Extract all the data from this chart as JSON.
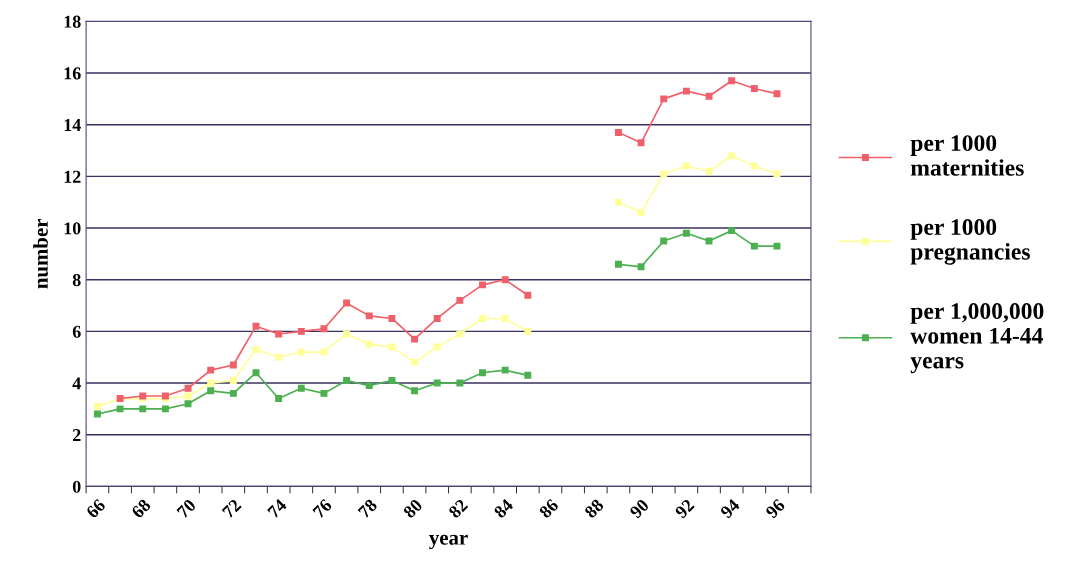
{
  "chart_data": {
    "type": "line",
    "xlabel": "year",
    "ylabel": "number",
    "categories": [
      "66",
      null,
      "68",
      null,
      "70",
      null,
      "72",
      null,
      "74",
      null,
      "76",
      null,
      "78",
      null,
      "80",
      null,
      "82",
      null,
      "84",
      null,
      "86",
      null,
      "88",
      null,
      "90",
      null,
      "92",
      null,
      "94",
      null,
      "96",
      null
    ],
    "series": [
      {
        "name": "per 1000\nmaternities",
        "color": "#f0606a",
        "values": [
          null,
          3.4,
          3.5,
          3.5,
          3.8,
          4.5,
          4.7,
          6.2,
          5.9,
          6.0,
          6.1,
          7.1,
          6.6,
          6.5,
          5.7,
          6.5,
          7.2,
          7.8,
          8.0,
          7.4,
          null,
          null,
          null,
          13.7,
          13.3,
          15.0,
          15.3,
          15.1,
          15.7,
          15.4,
          15.2,
          null
        ]
      },
      {
        "name": "per 1000\npregnancies",
        "color": "#ffff99",
        "values": [
          3.1,
          3.4,
          3.4,
          3.4,
          3.5,
          4.0,
          4.1,
          5.3,
          5.0,
          5.2,
          5.2,
          5.9,
          5.5,
          5.4,
          4.8,
          5.4,
          5.9,
          6.5,
          6.5,
          6.0,
          null,
          null,
          null,
          11.0,
          10.6,
          12.1,
          12.4,
          12.2,
          12.8,
          12.4,
          12.1,
          null
        ]
      },
      {
        "name": "per 1,000,000\nwomen 14-44\nyears",
        "color": "#4caf50",
        "values": [
          2.8,
          3.0,
          3.0,
          3.0,
          3.2,
          3.7,
          3.6,
          4.4,
          3.4,
          3.8,
          3.6,
          4.1,
          3.9,
          4.1,
          3.7,
          4.0,
          4.0,
          4.4,
          4.5,
          4.3,
          null,
          null,
          null,
          8.6,
          8.5,
          9.5,
          9.8,
          9.5,
          9.9,
          9.3,
          9.3,
          null
        ]
      }
    ],
    "ylim": [
      0,
      18
    ],
    "yticks": [
      0,
      2,
      4,
      6,
      8,
      10,
      12,
      14,
      16,
      18
    ],
    "grid": "y",
    "legend": "right",
    "marker": "square",
    "line_style": "solid"
  }
}
